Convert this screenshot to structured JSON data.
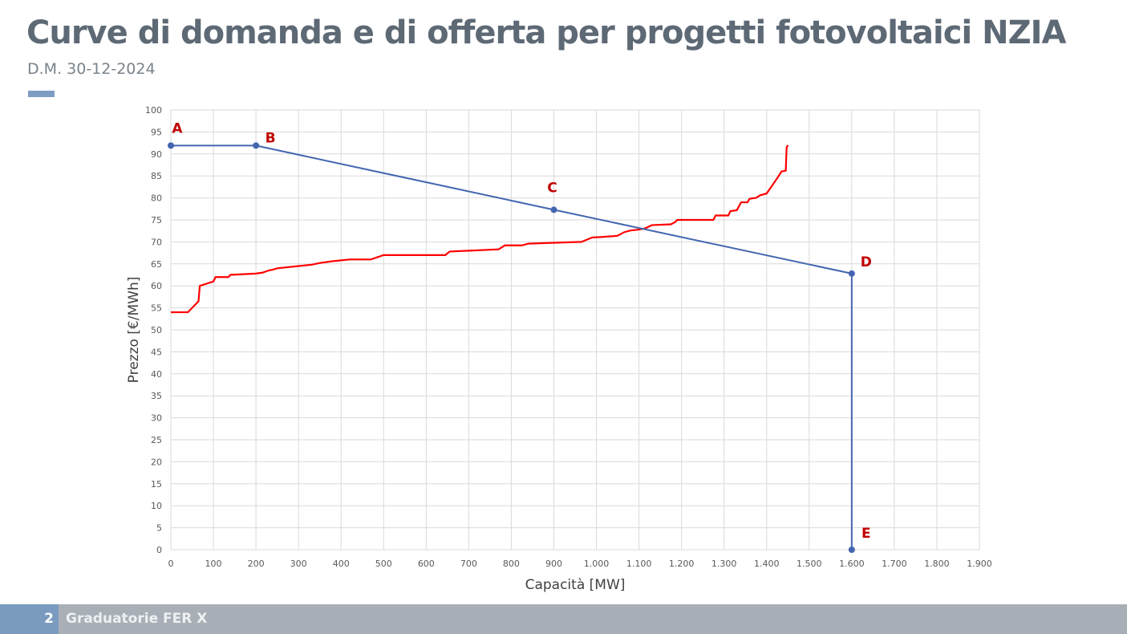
{
  "header": {
    "title": "Curve di domanda e di offerta per progetti fotovoltaici NZIA",
    "subtitle": "D.M. 30-12-2024"
  },
  "footer": {
    "page": "2",
    "section": "Graduatorie FER X"
  },
  "chart_data": {
    "type": "line",
    "xlabel": "Capacità [MW]",
    "ylabel": "Prezzo [€/MWh]",
    "xlim": [
      0,
      1900
    ],
    "ylim": [
      0,
      100
    ],
    "xticks": [
      0,
      100,
      200,
      300,
      400,
      500,
      600,
      700,
      800,
      900,
      1000,
      1100,
      1200,
      1300,
      1400,
      1500,
      1600,
      1700,
      1800,
      1900
    ],
    "xtick_labels": [
      "0",
      "100",
      "200",
      "300",
      "400",
      "500",
      "600",
      "700",
      "800",
      "900",
      "1.000",
      "1.100",
      "1.200",
      "1.300",
      "1.400",
      "1.500",
      "1.600",
      "1.700",
      "1.800",
      "1.900"
    ],
    "yticks": [
      0,
      5,
      10,
      15,
      20,
      25,
      30,
      35,
      40,
      45,
      50,
      55,
      60,
      65,
      70,
      75,
      80,
      85,
      90,
      95,
      100
    ],
    "grid": true,
    "series": [
      {
        "role": "demand",
        "color": "#4466b0",
        "markers": true,
        "points": [
          {
            "label": "A",
            "x": 0,
            "y": 91.9
          },
          {
            "label": "B",
            "x": 200,
            "y": 91.9
          },
          {
            "label": "C",
            "x": 900,
            "y": 77.3
          },
          {
            "label": "D",
            "x": 1600,
            "y": 62.8
          },
          {
            "label": "E",
            "x": 1600,
            "y": 0
          }
        ]
      },
      {
        "role": "supply",
        "color": "#ff0000",
        "markers": false,
        "x": [
          0,
          40,
          65,
          68,
          100,
          105,
          135,
          140,
          200,
          215,
          230,
          240,
          250,
          330,
          350,
          380,
          420,
          470,
          500,
          645,
          655,
          700,
          770,
          785,
          825,
          840,
          900,
          965,
          990,
          1010,
          1040,
          1050,
          1065,
          1080,
          1100,
          1115,
          1130,
          1175,
          1185,
          1190,
          1275,
          1280,
          1310,
          1315,
          1330,
          1340,
          1355,
          1360,
          1375,
          1385,
          1400,
          1425,
          1435,
          1445,
          1447,
          1450
        ],
        "y": [
          54,
          54,
          56.5,
          60,
          61,
          62,
          62,
          62.5,
          62.8,
          63,
          63.5,
          63.7,
          64,
          64.8,
          65.2,
          65.6,
          66,
          66,
          67,
          67,
          67.8,
          68,
          68.3,
          69.2,
          69.2,
          69.6,
          69.8,
          70,
          71,
          71.1,
          71.3,
          71.4,
          72.2,
          72.6,
          72.8,
          73.1,
          73.8,
          74,
          74.5,
          75,
          75,
          76,
          76,
          77,
          77.2,
          79,
          79,
          79.8,
          80,
          80.6,
          81,
          84.5,
          86,
          86.2,
          91.5,
          92
        ]
      }
    ],
    "label_color": "#c00000"
  }
}
